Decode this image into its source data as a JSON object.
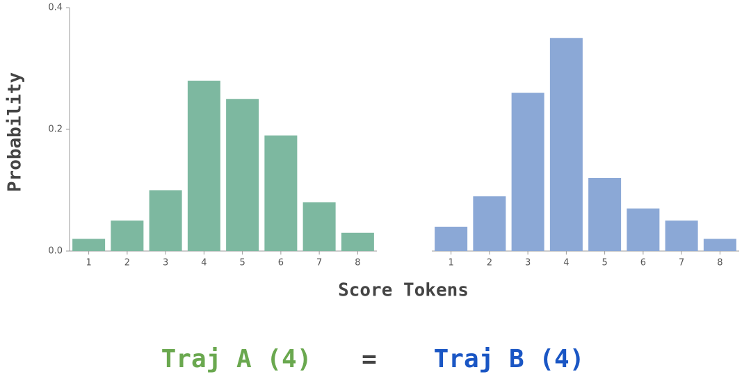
{
  "chart_data": [
    {
      "type": "bar",
      "y_label": "Probability",
      "categories": [
        "1",
        "2",
        "3",
        "4",
        "5",
        "6",
        "7",
        "8"
      ],
      "values": [
        0.02,
        0.05,
        0.1,
        0.28,
        0.25,
        0.19,
        0.08,
        0.03
      ],
      "color": "#7db8a0",
      "ylim": [
        0,
        0.4
      ],
      "yticks": [
        {
          "value": 0,
          "label": "0.0"
        },
        {
          "value": 0.2,
          "label": "0.2"
        },
        {
          "value": 0.4,
          "label": "0.4"
        }
      ]
    },
    {
      "type": "bar",
      "categories": [
        "1",
        "2",
        "3",
        "4",
        "5",
        "6",
        "7",
        "8"
      ],
      "values": [
        0.04,
        0.09,
        0.26,
        0.35,
        0.12,
        0.07,
        0.05,
        0.02
      ],
      "color": "#8ba8d6",
      "ylim": [
        0,
        0.4
      ]
    }
  ],
  "x_label": "Score Tokens",
  "caption": {
    "left": {
      "text": "Traj A (4)",
      "color": "#6aa84f"
    },
    "middle": {
      "text": "=",
      "color": "#444444"
    },
    "right": {
      "text": "Traj B (4)",
      "color": "#1a56c4"
    }
  }
}
